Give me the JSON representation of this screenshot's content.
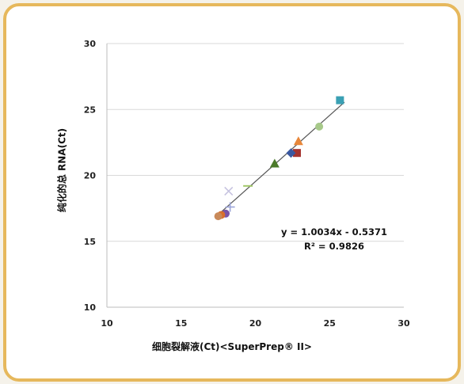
{
  "chart_data": {
    "type": "scatter",
    "xlabel": "细胞裂解液(Ct)<SuperPrep® II>",
    "ylabel": "纯化的总 RNA(Ct)",
    "xlim": [
      10,
      30
    ],
    "ylim": [
      10,
      30
    ],
    "xticks": [
      "10",
      "15",
      "20",
      "25",
      "30"
    ],
    "yticks": [
      "10",
      "15",
      "20",
      "25",
      "30"
    ],
    "grid": "horizontal",
    "legend": "none",
    "trendline": {
      "slope": 1.0034,
      "intercept": -0.5371,
      "x_range": [
        17.5,
        26
      ]
    },
    "annotations": {
      "equation": "y = 1.0034x - 0.5371",
      "r_squared": "R² = 0.9826"
    },
    "points": [
      {
        "x": 25.7,
        "y": 25.7,
        "marker": "square",
        "color": "#3aa0b4"
      },
      {
        "x": 24.3,
        "y": 23.7,
        "marker": "circle",
        "color": "#a7c98a"
      },
      {
        "x": 22.9,
        "y": 22.6,
        "marker": "triangle",
        "color": "#e8873a"
      },
      {
        "x": 22.8,
        "y": 21.7,
        "marker": "square",
        "color": "#a5332f"
      },
      {
        "x": 22.4,
        "y": 21.7,
        "marker": "diamond",
        "color": "#3a58a0"
      },
      {
        "x": 21.3,
        "y": 20.9,
        "marker": "triangle",
        "color": "#4b7a2a"
      },
      {
        "x": 19.5,
        "y": 19.2,
        "marker": "dash",
        "color": "#a2c86a"
      },
      {
        "x": 18.2,
        "y": 18.8,
        "marker": "x",
        "color": "#c6c3e0"
      },
      {
        "x": 18.3,
        "y": 17.6,
        "marker": "plus",
        "color": "#9aa3d8"
      },
      {
        "x": 18.0,
        "y": 17.1,
        "marker": "circle",
        "color": "#7a55a8"
      },
      {
        "x": 17.7,
        "y": 17.0,
        "marker": "circle",
        "color": "#d96f2c"
      },
      {
        "x": 17.5,
        "y": 16.9,
        "marker": "circle",
        "color": "#c98a5a"
      }
    ]
  },
  "colors": {
    "frame_border": "#e6b85c",
    "trendline": "#555555",
    "grid": "#d9d9d9"
  }
}
